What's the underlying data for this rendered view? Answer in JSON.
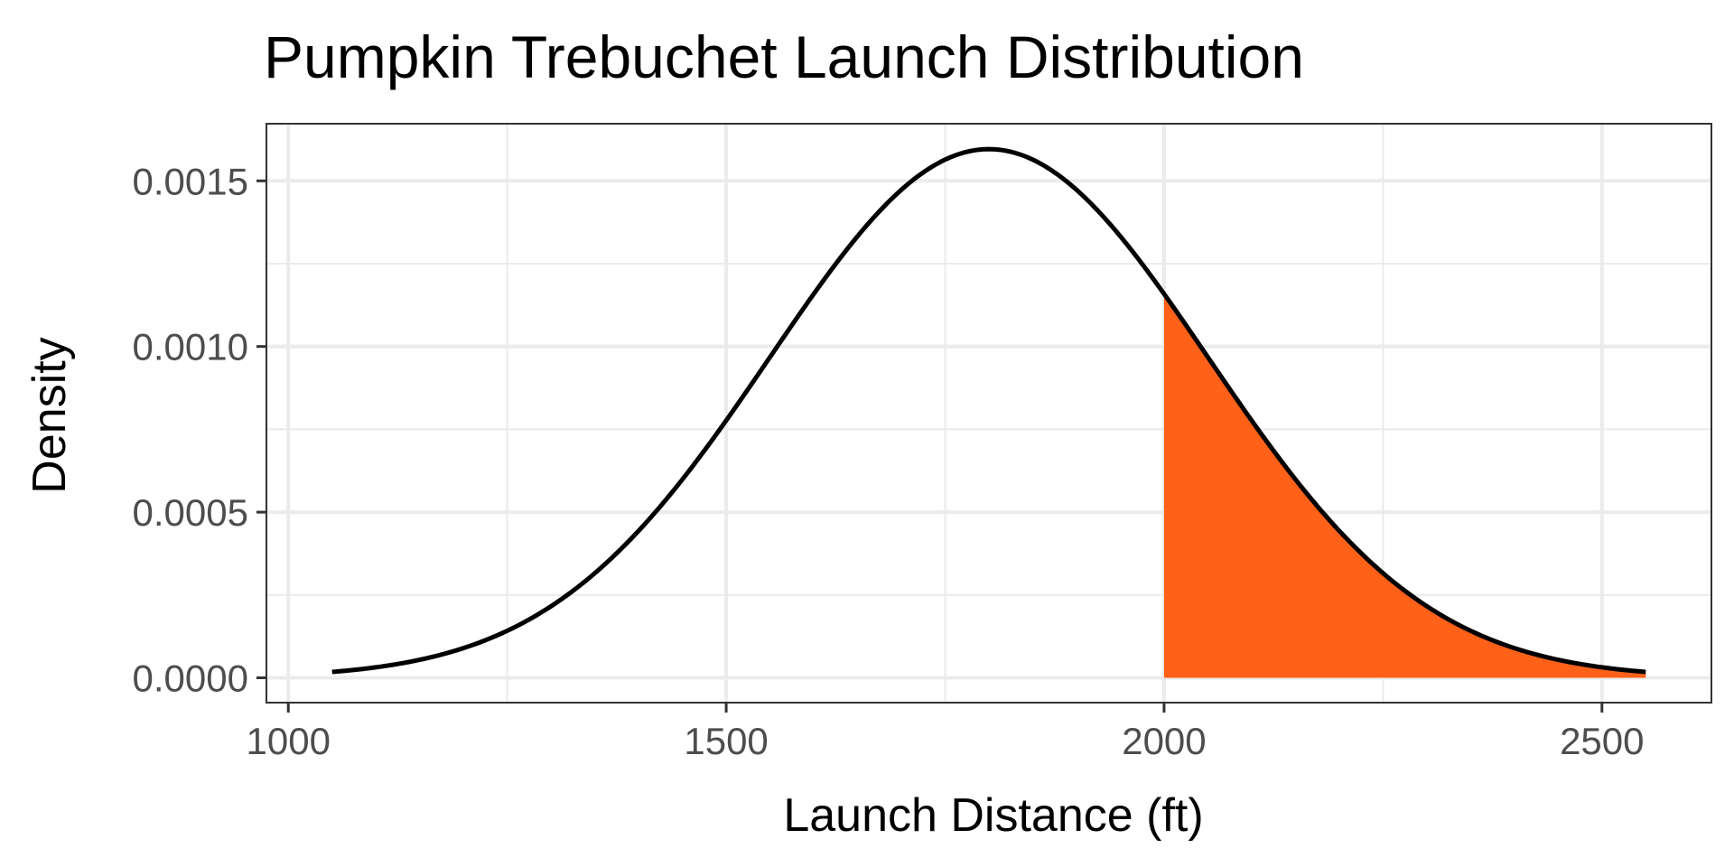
{
  "chart_data": {
    "type": "area",
    "title": "Pumpkin Trebuchet Launch Distribution",
    "xlabel": "Launch Distance (ft)",
    "ylabel": "Density",
    "xlim": [
      975,
      2625
    ],
    "ylim": [
      -7.5e-05,
      0.0016725
    ],
    "x_ticks": [
      1000,
      1500,
      2000,
      2500
    ],
    "x_tick_labels": [
      "1000",
      "1500",
      "2000",
      "2500"
    ],
    "x_minor_ticks": [
      1250,
      1750,
      2250
    ],
    "y_ticks": [
      0,
      0.0005,
      0.001,
      0.0015
    ],
    "y_tick_labels": [
      "0.0000",
      "0.0005",
      "0.0010",
      "0.0015"
    ],
    "y_minor_ticks": [
      0.00025,
      0.00075,
      0.00125
    ],
    "grid": true,
    "series": [
      {
        "kind": "normal-density-curve",
        "mean": 1800,
        "sd": 250,
        "x_range": [
          1050,
          2550
        ],
        "color": "#000000"
      }
    ],
    "shaded_region": {
      "from": 2000,
      "to": 2550,
      "color": "#ff6118"
    }
  }
}
